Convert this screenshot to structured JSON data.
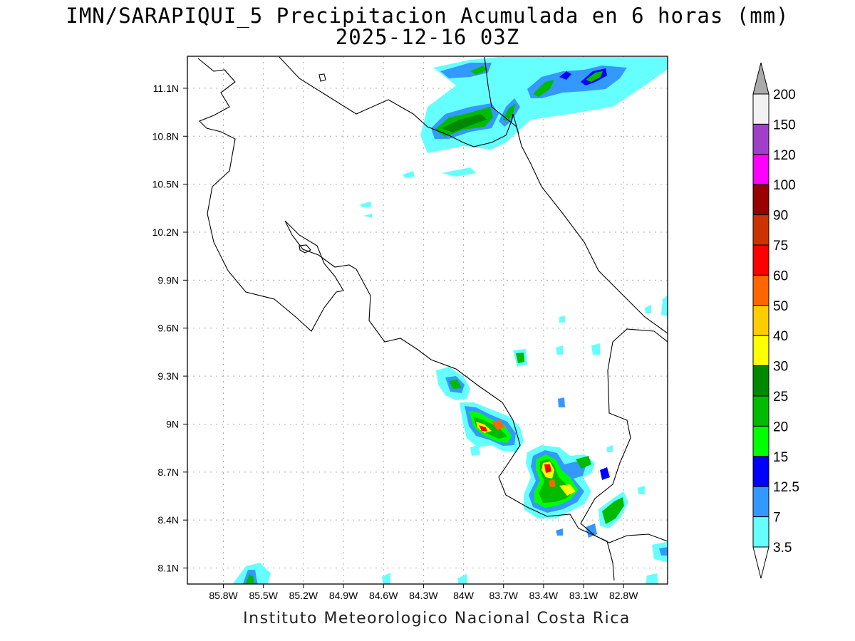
{
  "title": {
    "line1": "IMN/SARAPIQUI_5 Precipitacion Acumulada en 6 horas (mm)",
    "line2": "2025-12-16 03Z"
  },
  "footer": "Instituto Meteorologico Nacional Costa Rica",
  "map": {
    "lon_range": [
      -86.07,
      -82.47
    ],
    "lat_range": [
      8.0,
      11.3
    ],
    "lon_ticks": [
      "85.8W",
      "85.5W",
      "85.2W",
      "84.9W",
      "84.6W",
      "84.3W",
      "84W",
      "83.7W",
      "83.4W",
      "83.1W",
      "82.8W"
    ],
    "lat_ticks": [
      "11.1N",
      "10.8N",
      "10.5N",
      "10.2N",
      "9.9N",
      "9.6N",
      "9.3N",
      "9N",
      "8.7N",
      "8.4N",
      "8.1N"
    ],
    "grid": true
  },
  "colorbar": {
    "labels": [
      "200",
      "150",
      "120",
      "100",
      "90",
      "75",
      "60",
      "50",
      "40",
      "30",
      "25",
      "20",
      "15",
      "12.5",
      "7",
      "3.5"
    ],
    "colors": [
      "#f2f2f2",
      "#a040c8",
      "#ff00ff",
      "#990000",
      "#cc3300",
      "#ff0000",
      "#ff6600",
      "#ffcc00",
      "#ffff00",
      "#008800",
      "#00bb00",
      "#00ff00",
      "#0000ff",
      "#3399ff",
      "#66ffff"
    ],
    "over_color": "#aaaaaa",
    "under_color": "#ffffff"
  }
}
